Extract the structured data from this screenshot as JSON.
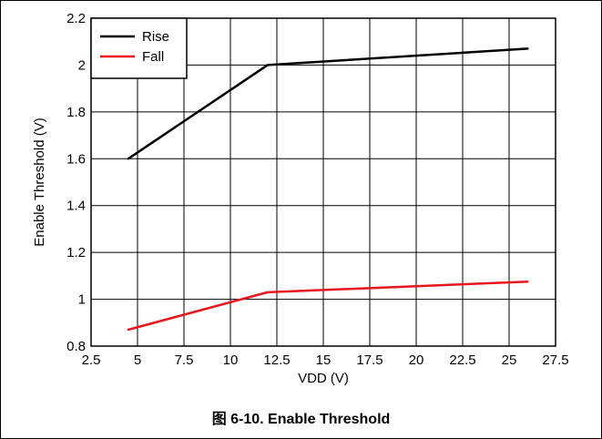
{
  "caption": "图 6-10. Enable Threshold",
  "chart_data": {
    "type": "line",
    "title": "",
    "xlabel": "VDD (V)",
    "ylabel": "Enable Threshold (V)",
    "xlim": [
      2.5,
      27.5
    ],
    "ylim": [
      0.8,
      2.2
    ],
    "x_ticks": [
      "2.5",
      "5",
      "7.5",
      "10",
      "12.5",
      "15",
      "17.5",
      "20",
      "22.5",
      "25",
      "27.5"
    ],
    "y_ticks": [
      "0.8",
      "1",
      "1.2",
      "1.4",
      "1.6",
      "1.8",
      "2",
      "2.2"
    ],
    "grid": true,
    "legend_position": "top-left",
    "series": [
      {
        "name": "Rise",
        "color": "#000000",
        "x": [
          4.5,
          12,
          26
        ],
        "y": [
          1.6,
          2.0,
          2.07
        ]
      },
      {
        "name": "Fall",
        "color": "#e8141e",
        "x": [
          4.5,
          12,
          26
        ],
        "y": [
          0.87,
          1.03,
          1.075
        ]
      }
    ]
  }
}
